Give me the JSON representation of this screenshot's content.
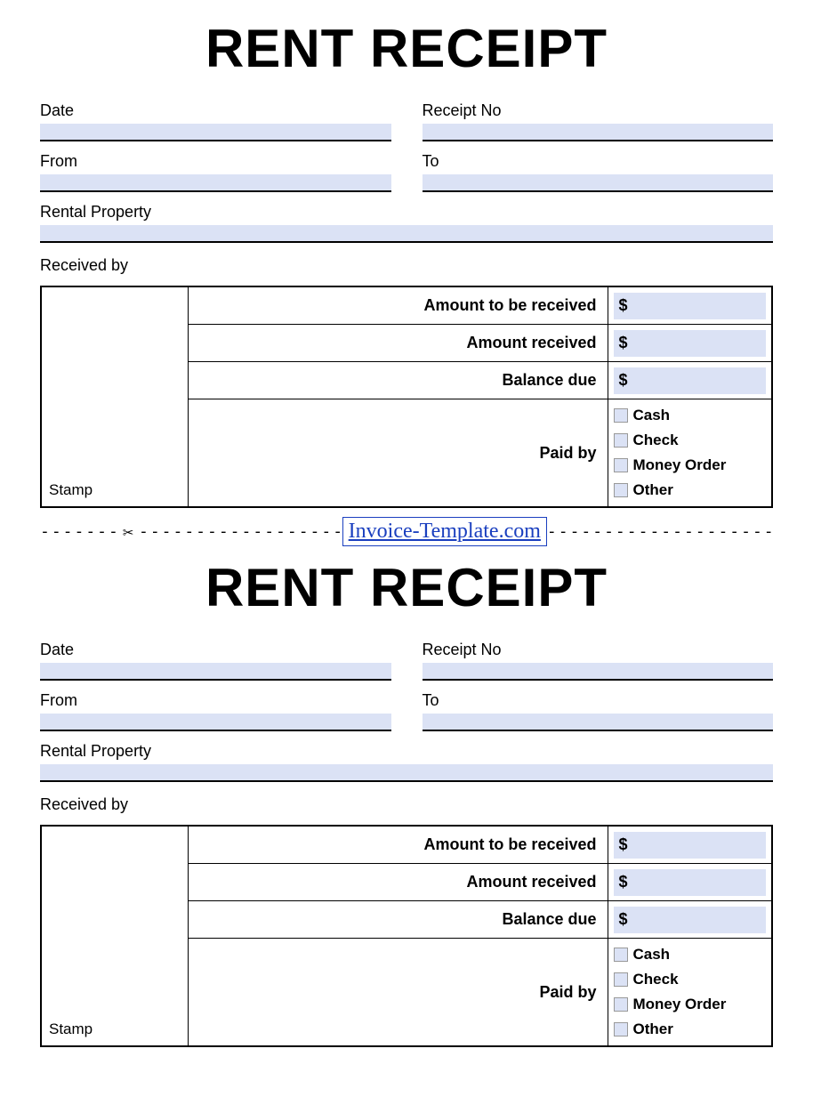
{
  "title": "RENT RECEIPT",
  "fields": {
    "date": "Date",
    "receipt_no": "Receipt No",
    "from": "From",
    "to": "To",
    "rental_property": "Rental Property",
    "received_by": "Received by",
    "stamp": "Stamp"
  },
  "amounts": {
    "to_be_received": {
      "label": "Amount to be received",
      "currency": "$"
    },
    "received": {
      "label": "Amount received",
      "currency": "$"
    },
    "balance_due": {
      "label": "Balance due",
      "currency": "$"
    }
  },
  "paid_by": {
    "label": "Paid by",
    "options": [
      "Cash",
      "Check",
      "Money Order",
      "Other"
    ]
  },
  "separator_link": "Invoice-Template.com",
  "colors": {
    "field_bg": "#dbe2f5",
    "border": "#000000",
    "link": "#1a3fbf"
  }
}
